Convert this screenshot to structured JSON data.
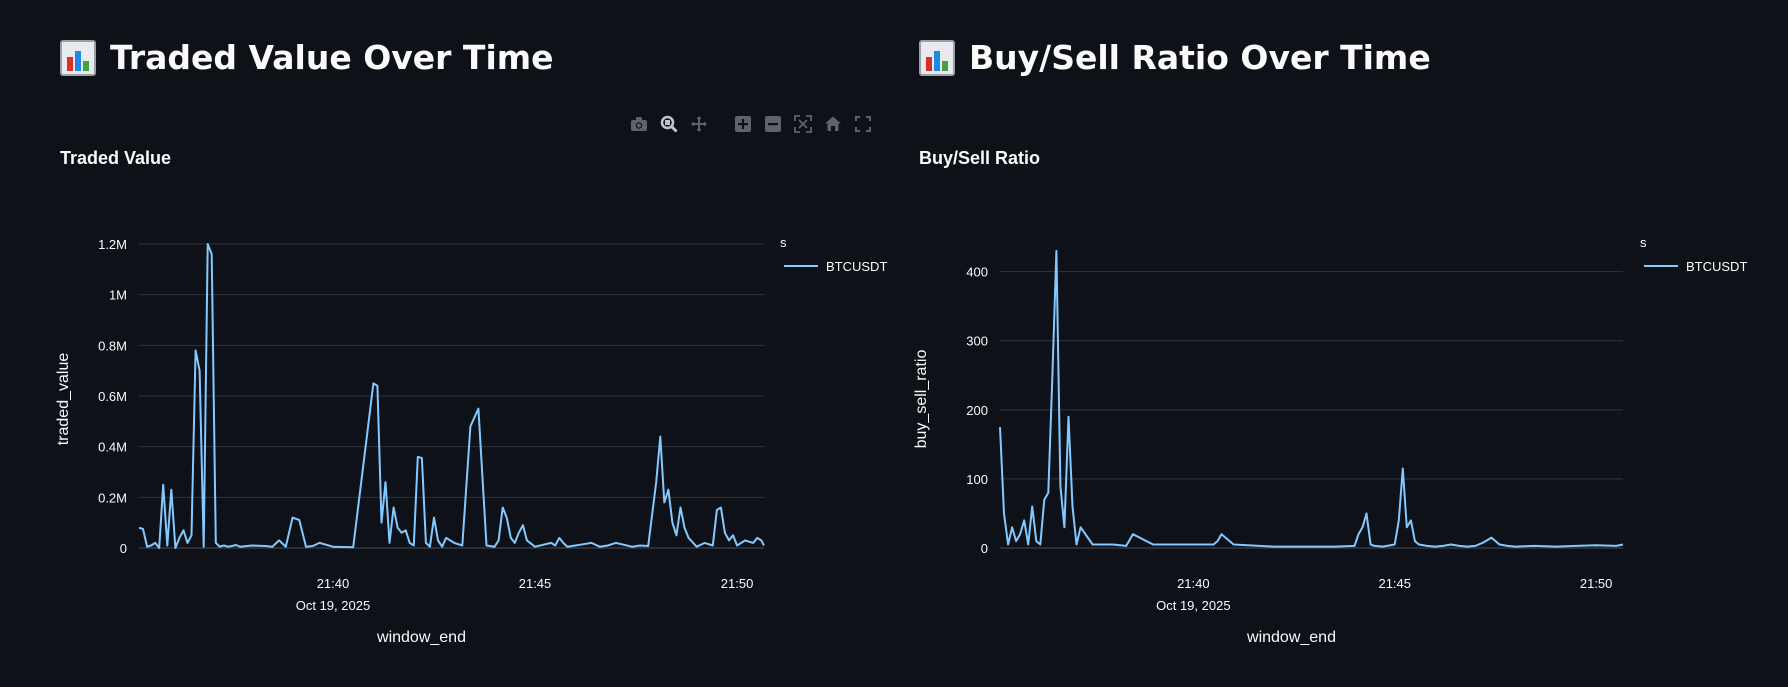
{
  "panels": {
    "left": {
      "heading": "Traded Value Over Time"
    },
    "right": {
      "heading": "Buy/Sell Ratio Over Time"
    }
  },
  "modebar": {
    "buttons": [
      "camera-icon",
      "zoom-icon",
      "pan-icon",
      "zoom-in-icon",
      "zoom-out-icon",
      "autoscale-icon",
      "reset-axes-icon",
      "fullscreen-icon"
    ]
  },
  "colors": {
    "background": "#0e1117",
    "series": "#83c9ff",
    "grid": "#31333f"
  },
  "chart_data": [
    {
      "type": "line",
      "title": "Traded Value",
      "xlabel": "window_end",
      "ylabel": "traded_value",
      "x_tick_labels": [
        "21:40",
        "21:45",
        "21:50"
      ],
      "x_tick_sublabel": "Oct 19, 2025",
      "xlim": [
        "2025-10-19 21:35:12",
        "2025-10-19 21:50:40"
      ],
      "y_tick_labels": [
        "0",
        "0.2M",
        "0.4M",
        "0.6M",
        "0.8M",
        "1M",
        "1.2M"
      ],
      "ylim": [
        0,
        1200000
      ],
      "y_ticks": [
        0,
        200000,
        400000,
        600000,
        800000,
        1000000,
        1200000
      ],
      "legend": {
        "title": "s",
        "position": "top-right",
        "entries": [
          "BTCUSDT"
        ]
      },
      "grid": true,
      "series": [
        {
          "name": "BTCUSDT",
          "x": [
            "21:35:12",
            "21:35:18",
            "21:35:24",
            "21:35:30",
            "21:35:36",
            "21:35:42",
            "21:35:48",
            "21:35:54",
            "21:36:00",
            "21:36:06",
            "21:36:12",
            "21:36:18",
            "21:36:24",
            "21:36:30",
            "21:36:36",
            "21:36:42",
            "21:36:48",
            "21:36:54",
            "21:37:00",
            "21:37:06",
            "21:37:12",
            "21:37:18",
            "21:37:24",
            "21:37:30",
            "21:37:36",
            "21:37:42",
            "21:38:00",
            "21:38:20",
            "21:38:30",
            "21:38:40",
            "21:38:50",
            "21:39:00",
            "21:39:10",
            "21:39:20",
            "21:39:30",
            "21:39:40",
            "21:40:00",
            "21:40:30",
            "21:41:00",
            "21:41:06",
            "21:41:12",
            "21:41:18",
            "21:41:24",
            "21:41:30",
            "21:41:36",
            "21:41:42",
            "21:41:48",
            "21:41:54",
            "21:42:00",
            "21:42:06",
            "21:42:12",
            "21:42:18",
            "21:42:24",
            "21:42:30",
            "21:42:36",
            "21:42:42",
            "21:42:48",
            "21:42:54",
            "21:43:00",
            "21:43:12",
            "21:43:24",
            "21:43:36",
            "21:43:48",
            "21:44:00",
            "21:44:06",
            "21:44:12",
            "21:44:18",
            "21:44:24",
            "21:44:30",
            "21:44:36",
            "21:44:42",
            "21:44:48",
            "21:45:00",
            "21:45:24",
            "21:45:30",
            "21:45:36",
            "21:45:42",
            "21:45:48",
            "21:46:00",
            "21:46:12",
            "21:46:24",
            "21:46:36",
            "21:46:48",
            "21:47:00",
            "21:47:24",
            "21:47:36",
            "21:47:48",
            "21:48:00",
            "21:48:06",
            "21:48:12",
            "21:48:18",
            "21:48:24",
            "21:48:30",
            "21:48:36",
            "21:48:42",
            "21:48:48",
            "21:49:00",
            "21:49:12",
            "21:49:24",
            "21:49:30",
            "21:49:36",
            "21:49:42",
            "21:49:48",
            "21:49:54",
            "21:50:00",
            "21:50:12",
            "21:50:24",
            "21:50:30",
            "21:50:36",
            "21:50:40"
          ],
          "values": [
            80000,
            75000,
            5000,
            10000,
            20000,
            0,
            250000,
            10000,
            230000,
            0,
            40000,
            70000,
            20000,
            50000,
            780000,
            700000,
            5000,
            1200000,
            1160000,
            20000,
            5000,
            10000,
            5000,
            8000,
            12000,
            5000,
            10000,
            8000,
            5000,
            30000,
            5000,
            120000,
            110000,
            5000,
            8000,
            20000,
            5000,
            3000,
            650000,
            640000,
            100000,
            260000,
            20000,
            160000,
            80000,
            60000,
            70000,
            20000,
            10000,
            360000,
            355000,
            20000,
            5000,
            120000,
            30000,
            5000,
            40000,
            30000,
            20000,
            10000,
            480000,
            550000,
            10000,
            5000,
            30000,
            160000,
            120000,
            40000,
            20000,
            60000,
            90000,
            30000,
            5000,
            20000,
            10000,
            40000,
            20000,
            5000,
            10000,
            15000,
            20000,
            5000,
            10000,
            20000,
            5000,
            10000,
            8000,
            260000,
            440000,
            180000,
            230000,
            100000,
            50000,
            160000,
            80000,
            40000,
            5000,
            20000,
            10000,
            150000,
            160000,
            60000,
            30000,
            50000,
            10000,
            30000,
            20000,
            40000,
            30000,
            10000
          ]
        }
      ]
    },
    {
      "type": "line",
      "title": "Buy/Sell Ratio",
      "xlabel": "window_end",
      "ylabel": "buy_sell_ratio",
      "x_tick_labels": [
        "21:40",
        "21:45",
        "21:50"
      ],
      "x_tick_sublabel": "Oct 19, 2025",
      "xlim": [
        "2025-10-19 21:35:12",
        "2025-10-19 21:50:40"
      ],
      "y_tick_labels": [
        "0",
        "100",
        "200",
        "300",
        "400"
      ],
      "ylim": [
        0,
        440
      ],
      "y_ticks": [
        0,
        100,
        200,
        300,
        400
      ],
      "legend": {
        "title": "s",
        "position": "top-right",
        "entries": [
          "BTCUSDT"
        ]
      },
      "grid": true,
      "series": [
        {
          "name": "BTCUSDT",
          "x": [
            "21:35:12",
            "21:35:18",
            "21:35:24",
            "21:35:30",
            "21:35:36",
            "21:35:42",
            "21:35:48",
            "21:35:54",
            "21:36:00",
            "21:36:06",
            "21:36:12",
            "21:36:18",
            "21:36:24",
            "21:36:30",
            "21:36:36",
            "21:36:42",
            "21:36:48",
            "21:36:54",
            "21:37:00",
            "21:37:06",
            "21:37:12",
            "21:37:30",
            "21:38:00",
            "21:38:20",
            "21:38:30",
            "21:39:00",
            "21:39:30",
            "21:40:00",
            "21:40:30",
            "21:40:36",
            "21:40:42",
            "21:41:00",
            "21:42:00",
            "21:43:00",
            "21:43:30",
            "21:44:00",
            "21:44:06",
            "21:44:12",
            "21:44:18",
            "21:44:24",
            "21:44:30",
            "21:44:42",
            "21:45:00",
            "21:45:06",
            "21:45:12",
            "21:45:18",
            "21:45:24",
            "21:45:30",
            "21:45:36",
            "21:45:48",
            "21:46:00",
            "21:46:12",
            "21:46:24",
            "21:46:36",
            "21:46:48",
            "21:47:00",
            "21:47:12",
            "21:47:24",
            "21:47:36",
            "21:47:48",
            "21:48:00",
            "21:48:30",
            "21:49:00",
            "21:49:30",
            "21:50:00",
            "21:50:30",
            "21:50:40"
          ],
          "values": [
            175,
            50,
            5,
            30,
            10,
            20,
            40,
            5,
            60,
            10,
            5,
            70,
            80,
            250,
            430,
            90,
            30,
            190,
            60,
            5,
            30,
            5,
            5,
            3,
            20,
            5,
            5,
            5,
            5,
            10,
            20,
            5,
            2,
            2,
            2,
            3,
            20,
            30,
            50,
            5,
            3,
            2,
            5,
            40,
            115,
            30,
            40,
            10,
            5,
            3,
            2,
            3,
            5,
            3,
            2,
            3,
            8,
            15,
            5,
            3,
            2,
            3,
            2,
            3,
            4,
            3,
            5
          ]
        }
      ]
    }
  ]
}
